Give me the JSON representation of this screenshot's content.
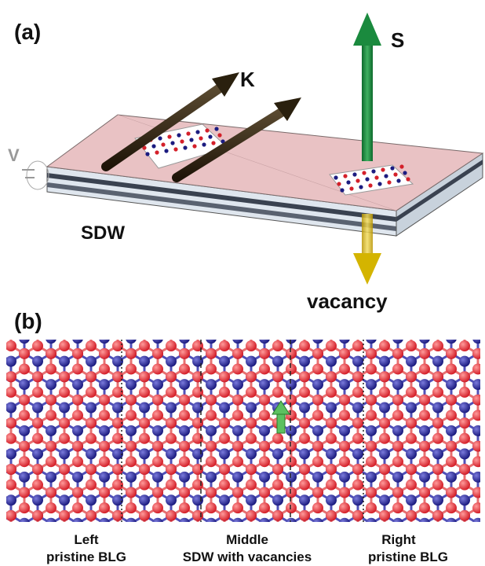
{
  "panel_a": {
    "label": "(a)",
    "k_label": "K",
    "s_label": "S",
    "v_label": "V",
    "sdw_label": "SDW",
    "vacancy_label": "vacancy"
  },
  "panel_b": {
    "label": "(b)",
    "regions": [
      {
        "title": "Left",
        "subtitle": "pristine BLG"
      },
      {
        "title": "Middle",
        "subtitle": "SDW with vacancies"
      },
      {
        "title": "Right",
        "subtitle": "pristine BLG"
      }
    ]
  }
}
